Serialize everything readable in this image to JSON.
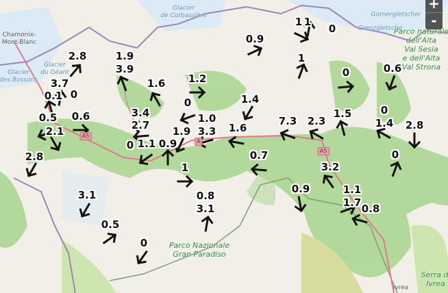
{
  "map": {
    "places": [
      {
        "name": "Chamonix-\nMont-Blanc",
        "kind": "town"
      },
      {
        "name": "Glacier\nde Corbassière",
        "kind": "glacier"
      },
      {
        "name": "Gornergletscher",
        "kind": "glacier"
      },
      {
        "name": "Grenzgletsche",
        "kind": "glacier"
      },
      {
        "name": "Glacier\ndes Bossons",
        "kind": "glacier"
      },
      {
        "name": "Glacier\ndu Géant",
        "kind": "glacier"
      },
      {
        "name": "Parco naturale\ndell'Alta\nVal Sesia\ne dell'Alta\nVal Strona",
        "kind": "park"
      },
      {
        "name": "Parco Nazionale\nGran Paradiso",
        "kind": "park"
      },
      {
        "name": "Serra di\nIvrea",
        "kind": "park"
      },
      {
        "name": "Ivrea",
        "kind": "town"
      }
    ],
    "road_shields": [
      "A5",
      "A5",
      "A"
    ],
    "colors": {
      "land": "#f2efe9",
      "forest": "#a9d58e",
      "meadow": "#cde6b0",
      "glacier": "#dbeaf5",
      "border": "#9b86b5",
      "road": "#e07a8a"
    }
  },
  "zoom_controls": {
    "zoom_in": "+",
    "zoom_out": "-"
  },
  "wind_stations": [
    {
      "labels": [
        "2.8"
      ],
      "direction_deg": 40
    },
    {
      "labels": [
        "3.7"
      ],
      "direction_deg": 10
    },
    {
      "labels": [
        "0.1"
      ],
      "direction_deg": 345
    },
    {
      "labels": [
        "0"
      ],
      "direction_deg": null
    },
    {
      "labels": [
        "0.5"
      ],
      "direction_deg": 250
    },
    {
      "labels": [
        "2.1"
      ],
      "direction_deg": 150
    },
    {
      "labels": [
        "0.6"
      ],
      "direction_deg": 90
    },
    {
      "labels": [
        "2.8"
      ],
      "direction_deg": 210
    },
    {
      "labels": [
        "1.9",
        "3.9"
      ],
      "direction_deg": 340
    },
    {
      "labels": [
        "1.6"
      ],
      "direction_deg": 330
    },
    {
      "labels": [
        "1.2"
      ],
      "direction_deg": 90
    },
    {
      "labels": [
        "0"
      ],
      "direction_deg": 250
    },
    {
      "labels": [
        "3.4"
      ],
      "direction_deg": 275
    },
    {
      "labels": [
        "2.7"
      ],
      "direction_deg": 265
    },
    {
      "labels": [
        "0"
      ],
      "direction_deg": null
    },
    {
      "labels": [
        "1.1"
      ],
      "direction_deg": 235
    },
    {
      "labels": [
        "0.9"
      ],
      "direction_deg": 0
    },
    {
      "labels": [
        "1.9"
      ],
      "direction_deg": 205
    },
    {
      "labels": [
        "1.0",
        "3.3"
      ],
      "direction_deg": 255
    },
    {
      "labels": [
        "1.6"
      ],
      "direction_deg": 280
    },
    {
      "labels": [
        "1.4"
      ],
      "direction_deg": 210
    },
    {
      "labels": [
        "0.9"
      ],
      "direction_deg": 65
    },
    {
      "labels": [
        "1"
      ],
      "direction_deg": 115
    },
    {
      "labels": [
        "1"
      ],
      "direction_deg": 10
    },
    {
      "labels": [
        "0"
      ],
      "direction_deg": null
    },
    {
      "labels": [
        "1"
      ],
      "direction_deg": 20
    },
    {
      "labels": [
        "7.3"
      ],
      "direction_deg": 290
    },
    {
      "labels": [
        "2.3"
      ],
      "direction_deg": 300
    },
    {
      "labels": [
        "1.5"
      ],
      "direction_deg": 345
    },
    {
      "labels": [
        "0"
      ],
      "direction_deg": 85
    },
    {
      "labels": [
        "0.6"
      ],
      "direction_deg": 200
    },
    {
      "labels": [
        "0",
        "1.4"
      ],
      "direction_deg": 300
    },
    {
      "labels": [
        "2.8"
      ],
      "direction_deg": 180
    },
    {
      "labels": [
        "0"
      ],
      "direction_deg": 20
    },
    {
      "labels": [
        "0.7"
      ],
      "direction_deg": 275
    },
    {
      "labels": [
        "3.2"
      ],
      "direction_deg": 325
    },
    {
      "labels": [
        "0.9"
      ],
      "direction_deg": 170
    },
    {
      "labels": [
        "1"
      ],
      "direction_deg": 90
    },
    {
      "labels": [
        "0.8",
        "3.1"
      ],
      "direction_deg": 10
    },
    {
      "labels": [
        "3.1"
      ],
      "direction_deg": 210
    },
    {
      "labels": [
        "0.5"
      ],
      "direction_deg": 55
    },
    {
      "labels": [
        "0"
      ],
      "direction_deg": 215
    },
    {
      "labels": [
        "1.1",
        "1.7"
      ],
      "direction_deg": 70
    },
    {
      "labels": [
        "0.8"
      ],
      "direction_deg": 285
    }
  ]
}
